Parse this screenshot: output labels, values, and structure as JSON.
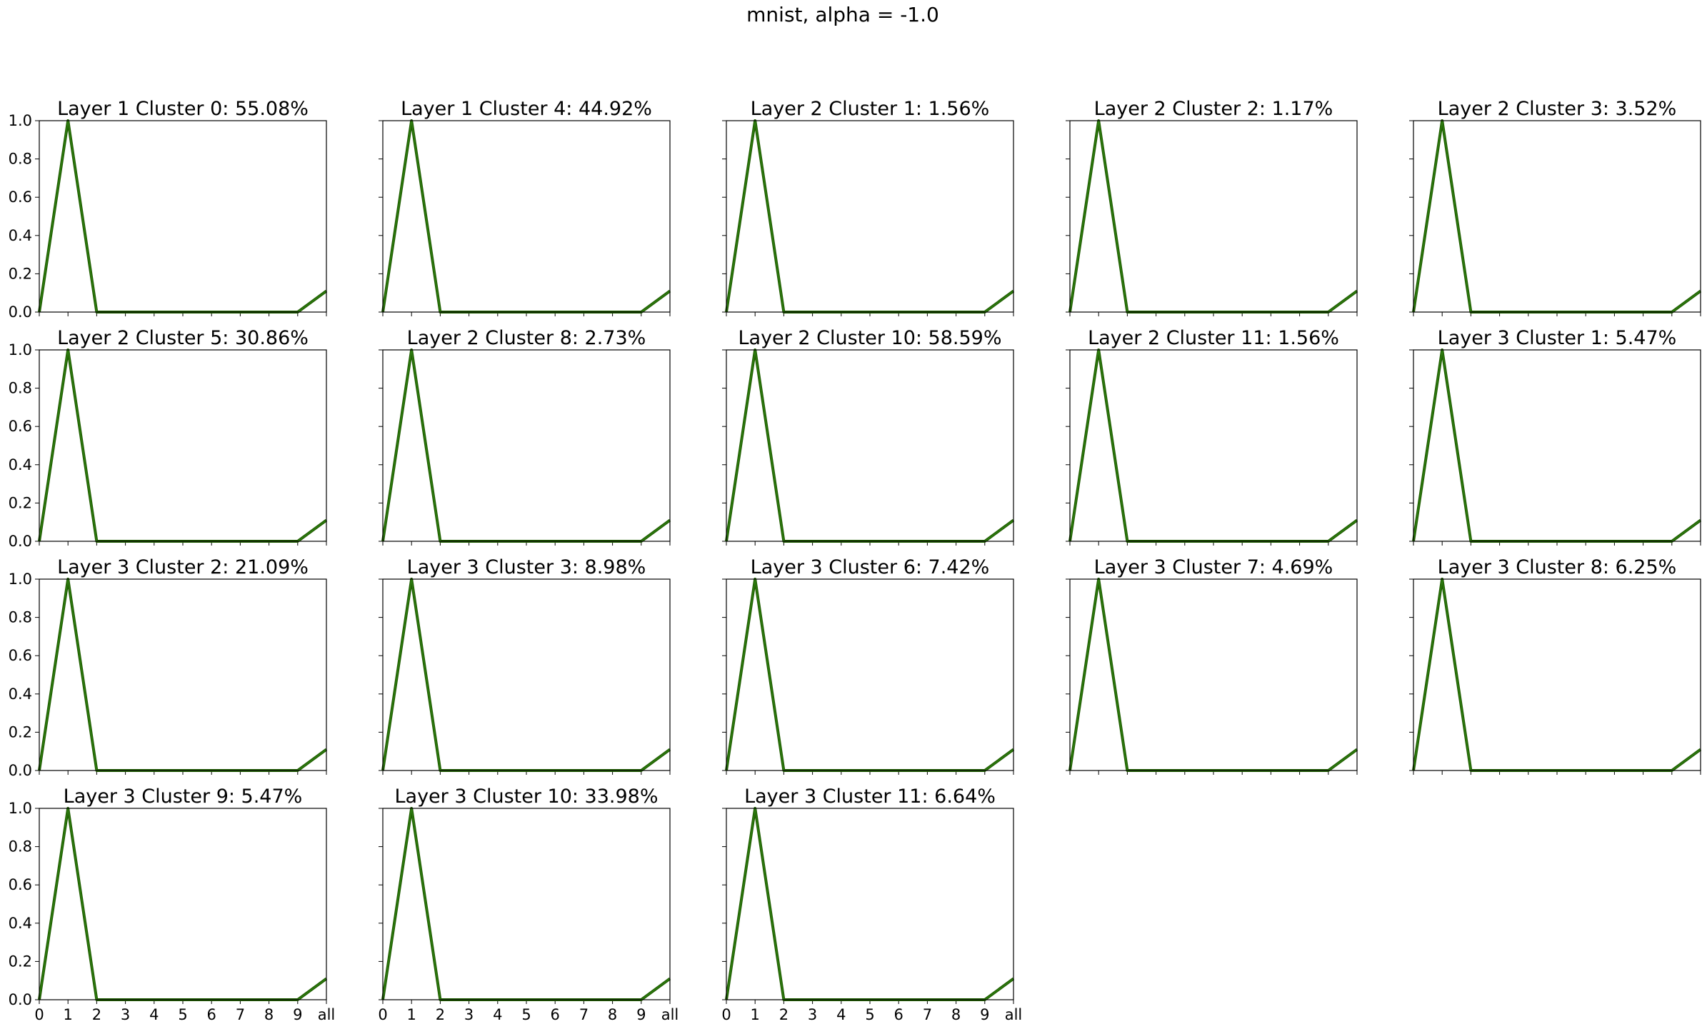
{
  "suptitle": "mnist, alpha = -1.0",
  "chart_data": [
    {
      "type": "line",
      "title": "Layer 1 Cluster 0: 55.08%",
      "x": [
        "0",
        "1",
        "2",
        "3",
        "4",
        "5",
        "6",
        "7",
        "8",
        "9",
        "all"
      ],
      "series": [
        {
          "values": [
            0,
            1,
            0,
            0,
            0,
            0,
            0,
            0,
            0,
            0,
            0.11
          ]
        }
      ],
      "ylim": [
        0,
        1
      ],
      "yticks": [
        "0.0",
        "0.2",
        "0.4",
        "0.6",
        "0.8",
        "1.0"
      ],
      "show_yticks": true,
      "show_xticks": false
    },
    {
      "type": "line",
      "title": "Layer 1 Cluster 4: 44.92%",
      "x": [
        "0",
        "1",
        "2",
        "3",
        "4",
        "5",
        "6",
        "7",
        "8",
        "9",
        "all"
      ],
      "series": [
        {
          "values": [
            0,
            1,
            0,
            0,
            0,
            0,
            0,
            0,
            0,
            0,
            0.11
          ]
        }
      ],
      "ylim": [
        0,
        1
      ],
      "show_yticks": false,
      "show_xticks": false
    },
    {
      "type": "line",
      "title": "Layer 2 Cluster 1: 1.56%",
      "x": [
        "0",
        "1",
        "2",
        "3",
        "4",
        "5",
        "6",
        "7",
        "8",
        "9",
        "all"
      ],
      "series": [
        {
          "values": [
            0,
            1,
            0,
            0,
            0,
            0,
            0,
            0,
            0,
            0,
            0.11
          ]
        }
      ],
      "ylim": [
        0,
        1
      ],
      "show_yticks": false,
      "show_xticks": false
    },
    {
      "type": "line",
      "title": "Layer 2 Cluster 2: 1.17%",
      "x": [
        "0",
        "1",
        "2",
        "3",
        "4",
        "5",
        "6",
        "7",
        "8",
        "9",
        "all"
      ],
      "series": [
        {
          "values": [
            0,
            1,
            0,
            0,
            0,
            0,
            0,
            0,
            0,
            0,
            0.11
          ]
        }
      ],
      "ylim": [
        0,
        1
      ],
      "show_yticks": false,
      "show_xticks": false
    },
    {
      "type": "line",
      "title": "Layer 2 Cluster 3: 3.52%",
      "x": [
        "0",
        "1",
        "2",
        "3",
        "4",
        "5",
        "6",
        "7",
        "8",
        "9",
        "all"
      ],
      "series": [
        {
          "values": [
            0,
            1,
            0,
            0,
            0,
            0,
            0,
            0,
            0,
            0,
            0.11
          ]
        }
      ],
      "ylim": [
        0,
        1
      ],
      "show_yticks": false,
      "show_xticks": false
    },
    {
      "type": "line",
      "title": "Layer 2 Cluster 5: 30.86%",
      "x": [
        "0",
        "1",
        "2",
        "3",
        "4",
        "5",
        "6",
        "7",
        "8",
        "9",
        "all"
      ],
      "series": [
        {
          "values": [
            0,
            1,
            0,
            0,
            0,
            0,
            0,
            0,
            0,
            0,
            0.11
          ]
        }
      ],
      "ylim": [
        0,
        1
      ],
      "yticks": [
        "0.0",
        "0.2",
        "0.4",
        "0.6",
        "0.8",
        "1.0"
      ],
      "show_yticks": true,
      "show_xticks": false
    },
    {
      "type": "line",
      "title": "Layer 2 Cluster 8: 2.73%",
      "x": [
        "0",
        "1",
        "2",
        "3",
        "4",
        "5",
        "6",
        "7",
        "8",
        "9",
        "all"
      ],
      "series": [
        {
          "values": [
            0,
            1,
            0,
            0,
            0,
            0,
            0,
            0,
            0,
            0,
            0.11
          ]
        }
      ],
      "ylim": [
        0,
        1
      ],
      "show_yticks": false,
      "show_xticks": false
    },
    {
      "type": "line",
      "title": "Layer 2 Cluster 10: 58.59%",
      "x": [
        "0",
        "1",
        "2",
        "3",
        "4",
        "5",
        "6",
        "7",
        "8",
        "9",
        "all"
      ],
      "series": [
        {
          "values": [
            0,
            1,
            0,
            0,
            0,
            0,
            0,
            0,
            0,
            0,
            0.11
          ]
        }
      ],
      "ylim": [
        0,
        1
      ],
      "show_yticks": false,
      "show_xticks": false
    },
    {
      "type": "line",
      "title": "Layer 2 Cluster 11: 1.56%",
      "x": [
        "0",
        "1",
        "2",
        "3",
        "4",
        "5",
        "6",
        "7",
        "8",
        "9",
        "all"
      ],
      "series": [
        {
          "values": [
            0,
            1,
            0,
            0,
            0,
            0,
            0,
            0,
            0,
            0,
            0.11
          ]
        }
      ],
      "ylim": [
        0,
        1
      ],
      "show_yticks": false,
      "show_xticks": false
    },
    {
      "type": "line",
      "title": "Layer 3 Cluster 1: 5.47%",
      "x": [
        "0",
        "1",
        "2",
        "3",
        "4",
        "5",
        "6",
        "7",
        "8",
        "9",
        "all"
      ],
      "series": [
        {
          "values": [
            0,
            1,
            0,
            0,
            0,
            0,
            0,
            0,
            0,
            0,
            0.11
          ]
        }
      ],
      "ylim": [
        0,
        1
      ],
      "show_yticks": false,
      "show_xticks": false
    },
    {
      "type": "line",
      "title": "Layer 3 Cluster 2: 21.09%",
      "x": [
        "0",
        "1",
        "2",
        "3",
        "4",
        "5",
        "6",
        "7",
        "8",
        "9",
        "all"
      ],
      "series": [
        {
          "values": [
            0,
            1,
            0,
            0,
            0,
            0,
            0,
            0,
            0,
            0,
            0.11
          ]
        }
      ],
      "ylim": [
        0,
        1
      ],
      "yticks": [
        "0.0",
        "0.2",
        "0.4",
        "0.6",
        "0.8",
        "1.0"
      ],
      "show_yticks": true,
      "show_xticks": false
    },
    {
      "type": "line",
      "title": "Layer 3 Cluster 3: 8.98%",
      "x": [
        "0",
        "1",
        "2",
        "3",
        "4",
        "5",
        "6",
        "7",
        "8",
        "9",
        "all"
      ],
      "series": [
        {
          "values": [
            0,
            1,
            0,
            0,
            0,
            0,
            0,
            0,
            0,
            0,
            0.11
          ]
        }
      ],
      "ylim": [
        0,
        1
      ],
      "show_yticks": false,
      "show_xticks": false
    },
    {
      "type": "line",
      "title": "Layer 3 Cluster 6: 7.42%",
      "x": [
        "0",
        "1",
        "2",
        "3",
        "4",
        "5",
        "6",
        "7",
        "8",
        "9",
        "all"
      ],
      "series": [
        {
          "values": [
            0,
            1,
            0,
            0,
            0,
            0,
            0,
            0,
            0,
            0,
            0.11
          ]
        }
      ],
      "ylim": [
        0,
        1
      ],
      "show_yticks": false,
      "show_xticks": false
    },
    {
      "type": "line",
      "title": "Layer 3 Cluster 7: 4.69%",
      "x": [
        "0",
        "1",
        "2",
        "3",
        "4",
        "5",
        "6",
        "7",
        "8",
        "9",
        "all"
      ],
      "series": [
        {
          "values": [
            0,
            1,
            0,
            0,
            0,
            0,
            0,
            0,
            0,
            0,
            0.11
          ]
        }
      ],
      "ylim": [
        0,
        1
      ],
      "show_yticks": false,
      "show_xticks": false
    },
    {
      "type": "line",
      "title": "Layer 3 Cluster 8: 6.25%",
      "x": [
        "0",
        "1",
        "2",
        "3",
        "4",
        "5",
        "6",
        "7",
        "8",
        "9",
        "all"
      ],
      "series": [
        {
          "values": [
            0,
            1,
            0,
            0,
            0,
            0,
            0,
            0,
            0,
            0,
            0.11
          ]
        }
      ],
      "ylim": [
        0,
        1
      ],
      "show_yticks": false,
      "show_xticks": false
    },
    {
      "type": "line",
      "title": "Layer 3 Cluster 9: 5.47%",
      "x": [
        "0",
        "1",
        "2",
        "3",
        "4",
        "5",
        "6",
        "7",
        "8",
        "9",
        "all"
      ],
      "series": [
        {
          "values": [
            0,
            1,
            0,
            0,
            0,
            0,
            0,
            0,
            0,
            0,
            0.11
          ]
        }
      ],
      "ylim": [
        0,
        1
      ],
      "yticks": [
        "0.0",
        "0.2",
        "0.4",
        "0.6",
        "0.8",
        "1.0"
      ],
      "show_yticks": true,
      "show_xticks": true
    },
    {
      "type": "line",
      "title": "Layer 3 Cluster 10: 33.98%",
      "x": [
        "0",
        "1",
        "2",
        "3",
        "4",
        "5",
        "6",
        "7",
        "8",
        "9",
        "all"
      ],
      "series": [
        {
          "values": [
            0,
            1,
            0,
            0,
            0,
            0,
            0,
            0,
            0,
            0,
            0.11
          ]
        }
      ],
      "ylim": [
        0,
        1
      ],
      "show_yticks": false,
      "show_xticks": true
    },
    {
      "type": "line",
      "title": "Layer 3 Cluster 11: 6.64%",
      "x": [
        "0",
        "1",
        "2",
        "3",
        "4",
        "5",
        "6",
        "7",
        "8",
        "9",
        "all"
      ],
      "series": [
        {
          "values": [
            0,
            1,
            0,
            0,
            0,
            0,
            0,
            0,
            0,
            0,
            0.11
          ]
        }
      ],
      "ylim": [
        0,
        1
      ],
      "show_yticks": false,
      "show_xticks": true
    }
  ],
  "colors": {
    "line_outer": "#1f5d00",
    "line_inner": "#2e7d10",
    "axes": "#000000"
  }
}
